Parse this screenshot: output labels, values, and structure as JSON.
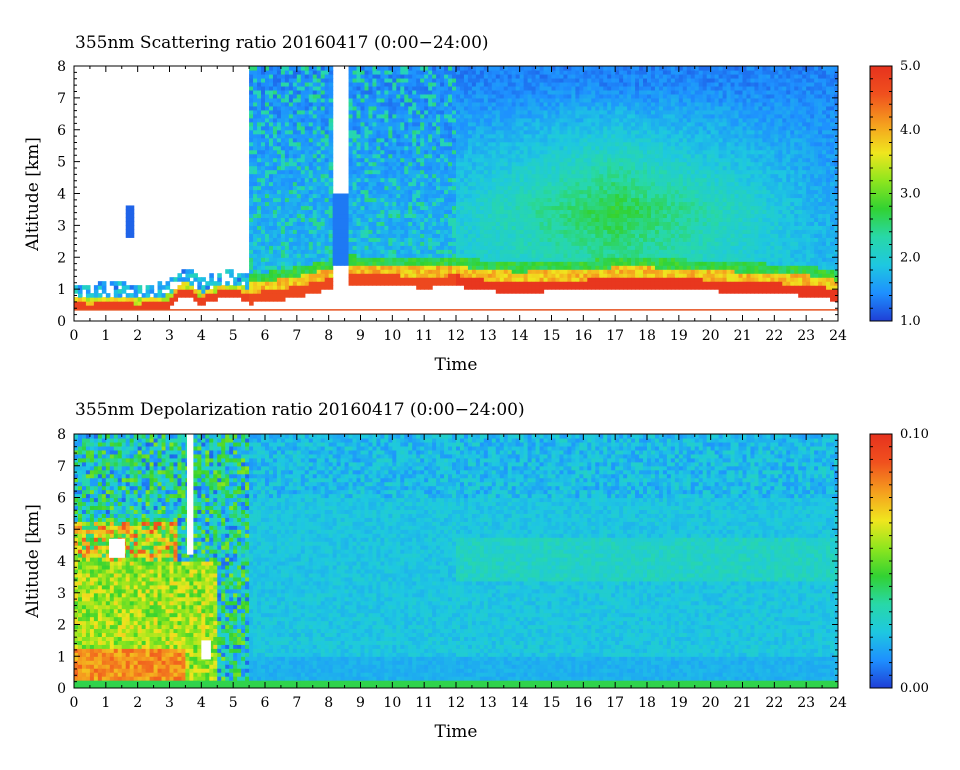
{
  "chart_data": [
    {
      "type": "heatmap",
      "title": "355nm Scattering ratio  20160417 (0:00−24:00)",
      "xlabel": "Time",
      "ylabel": "Altitude [km]",
      "x_range": [
        0,
        24
      ],
      "y_range": [
        0,
        8
      ],
      "x_ticks": [
        "0",
        "1",
        "2",
        "3",
        "4",
        "5",
        "6",
        "7",
        "8",
        "9",
        "10",
        "11",
        "12",
        "13",
        "14",
        "15",
        "16",
        "17",
        "18",
        "19",
        "20",
        "21",
        "22",
        "23",
        "24"
      ],
      "y_ticks": [
        "0",
        "1",
        "2",
        "3",
        "4",
        "5",
        "6",
        "7",
        "8"
      ],
      "colorbar": {
        "min": 1.0,
        "max": 5.0,
        "ticks": [
          "1.0",
          "2.0",
          "3.0",
          "4.0",
          "5.0"
        ]
      },
      "colormap": [
        "#1f3fd6",
        "#1e90ff",
        "#1ec8e0",
        "#28d8a8",
        "#32d232",
        "#8ee61e",
        "#f0e61e",
        "#f5a01e",
        "#f0501e",
        "#e6321e"
      ],
      "ground_line_altitude_km": 0.35,
      "ground_line_color": "#e6501e",
      "boundary_layer_top_km": [
        [
          0,
          0.6
        ],
        [
          0.5,
          0.55
        ],
        [
          1,
          0.65
        ],
        [
          1.5,
          0.6
        ],
        [
          2,
          0.55
        ],
        [
          2.5,
          0.6
        ],
        [
          3,
          0.7
        ],
        [
          3.5,
          1.1
        ],
        [
          4,
          0.75
        ],
        [
          4.5,
          0.95
        ],
        [
          5,
          1.0
        ],
        [
          5.5,
          0.9
        ],
        [
          6,
          0.95
        ],
        [
          7,
          1.1
        ],
        [
          8,
          1.35
        ],
        [
          8.5,
          1.55
        ],
        [
          9,
          1.45
        ],
        [
          10,
          1.45
        ],
        [
          11,
          1.4
        ],
        [
          12,
          1.45
        ],
        [
          13,
          1.3
        ],
        [
          14,
          1.25
        ],
        [
          15,
          1.3
        ],
        [
          16,
          1.3
        ],
        [
          17,
          1.4
        ],
        [
          18,
          1.4
        ],
        [
          19,
          1.35
        ],
        [
          20,
          1.3
        ],
        [
          21,
          1.25
        ],
        [
          22,
          1.2
        ],
        [
          23,
          1.15
        ],
        [
          24,
          1.0
        ]
      ]
    },
    {
      "type": "heatmap",
      "title": "355nm Depolarization ratio  20160417 (0:00−24:00)",
      "xlabel": "Time",
      "ylabel": "Altitude [km]",
      "x_range": [
        0,
        24
      ],
      "y_range": [
        0,
        8
      ],
      "x_ticks": [
        "0",
        "1",
        "2",
        "3",
        "4",
        "5",
        "6",
        "7",
        "8",
        "9",
        "10",
        "11",
        "12",
        "13",
        "14",
        "15",
        "16",
        "17",
        "18",
        "19",
        "20",
        "21",
        "22",
        "23",
        "24"
      ],
      "y_ticks": [
        "0",
        "1",
        "2",
        "3",
        "4",
        "5",
        "6",
        "7",
        "8"
      ],
      "colorbar": {
        "min": 0.0,
        "max": 0.1,
        "ticks": [
          "0.00",
          "0.10"
        ]
      },
      "colormap": [
        "#1f3fd6",
        "#1e90ff",
        "#1ec8e0",
        "#28d8a8",
        "#32d232",
        "#8ee61e",
        "#f0e61e",
        "#f5a01e",
        "#f0501e",
        "#e6321e"
      ]
    }
  ]
}
